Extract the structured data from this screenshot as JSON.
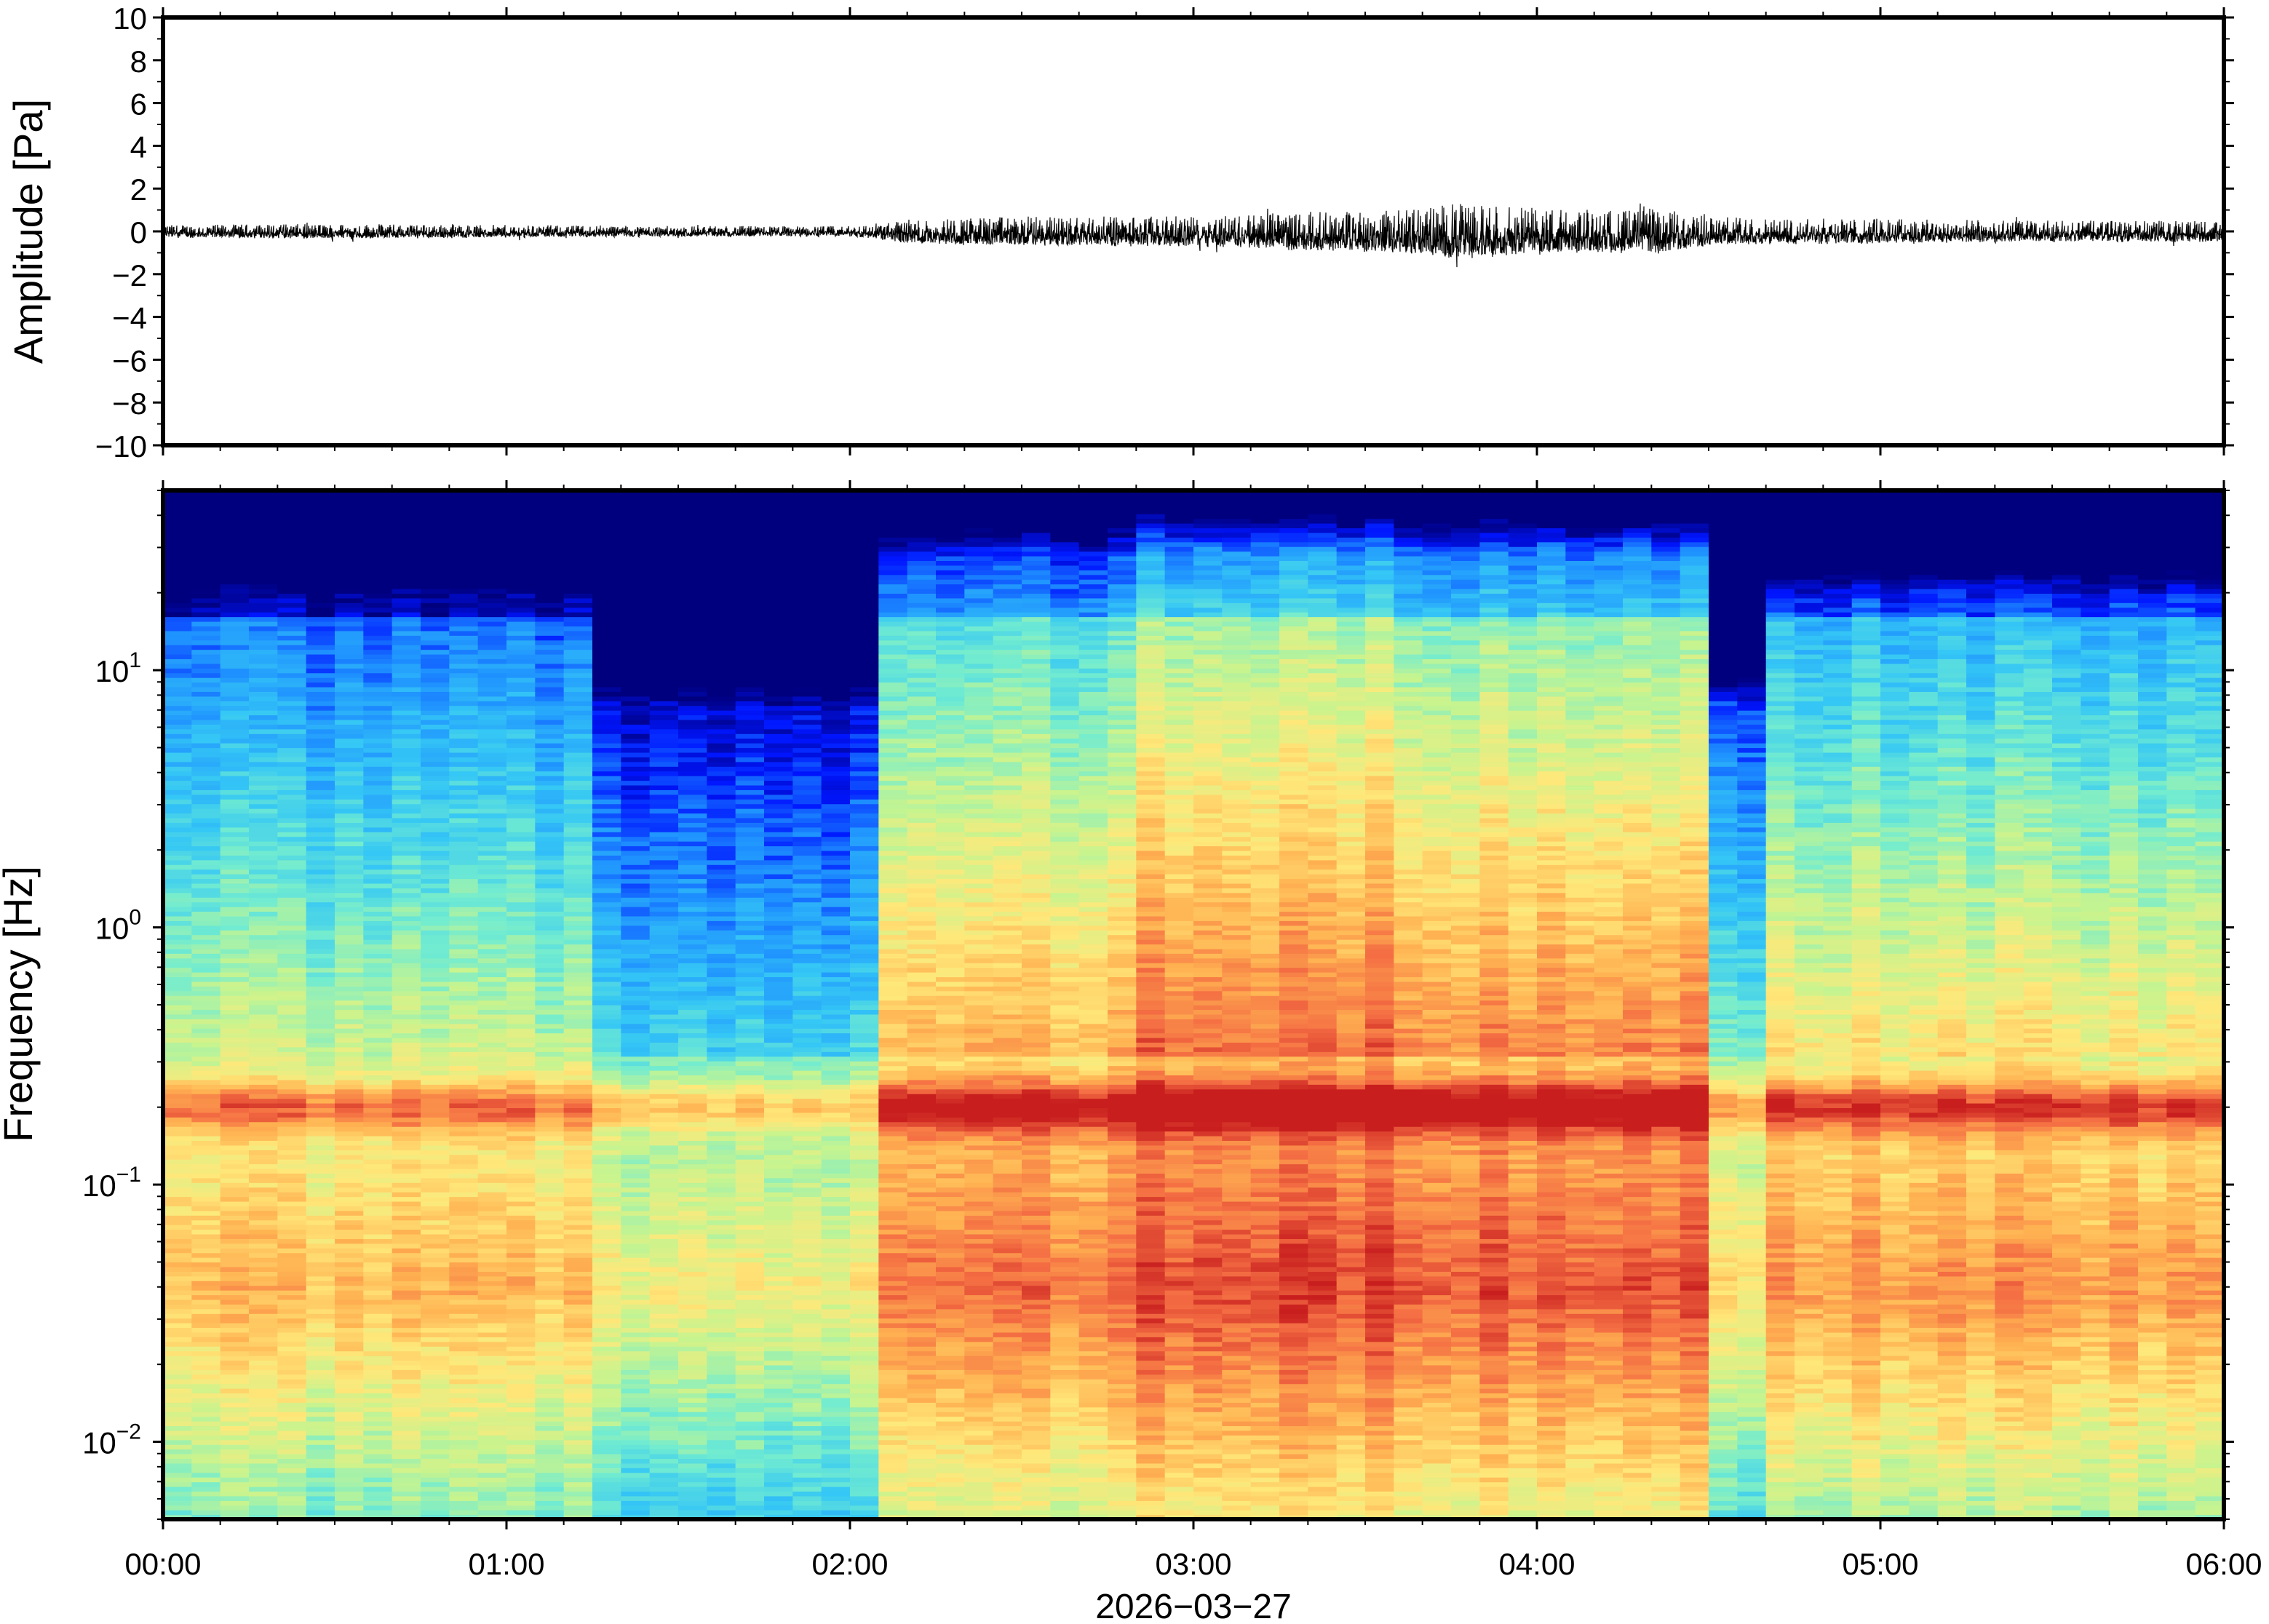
{
  "chart_data": [
    {
      "type": "line",
      "panel": "waveform",
      "ylabel": "Amplitude [Pa]",
      "ylim": [
        -10,
        10
      ],
      "y_ticks": [
        "10",
        "8",
        "6",
        "4",
        "2",
        "0",
        "−2",
        "−4",
        "−6",
        "−8",
        "−10"
      ],
      "y_tick_values": [
        10,
        8,
        6,
        4,
        2,
        0,
        -2,
        -4,
        -6,
        -8,
        -10
      ],
      "xlim_hours": [
        0,
        6
      ],
      "series": [
        {
          "values_description": "noise trace",
          "x_hours": [
            0,
            0.5,
            1.0,
            1.5,
            2.0,
            2.2,
            2.5,
            3.0,
            3.3,
            3.6,
            3.75,
            4.0,
            4.2,
            4.35,
            4.5,
            4.7,
            5.0,
            5.5,
            6.0
          ],
          "envelope_pa": [
            0.3,
            0.35,
            0.3,
            0.25,
            0.25,
            0.6,
            0.7,
            0.7,
            0.9,
            1.0,
            1.3,
            1.1,
            1.0,
            1.1,
            0.7,
            0.6,
            0.6,
            0.5,
            0.5
          ]
        }
      ],
      "color": "#000000"
    },
    {
      "type": "heatmap",
      "panel": "spectrogram",
      "ylabel": "Frequency [Hz]",
      "y_scale": "log",
      "ylim_hz": [
        0.005,
        50
      ],
      "y_ticks": [
        {
          "base": "10",
          "exp": "1",
          "value": 10
        },
        {
          "base": "10",
          "exp": "0",
          "value": 1
        },
        {
          "base": "10",
          "exp": "−1",
          "value": 0.1
        },
        {
          "base": "10",
          "exp": "−2",
          "value": 0.01
        }
      ],
      "x_ticks": [
        "00:00",
        "01:00",
        "02:00",
        "03:00",
        "04:00",
        "05:00",
        "06:00"
      ],
      "x_tick_hours": [
        0,
        1,
        2,
        3,
        4,
        5,
        6
      ],
      "xlabel": "2026−03−27",
      "colormap": [
        "#00007f",
        "#0015ff",
        "#1e90ff",
        "#35c7f5",
        "#72ecd0",
        "#c7f48f",
        "#ffe87a",
        "#ffb352",
        "#f46d43",
        "#c81e1e"
      ],
      "time_blocks": 72,
      "regimes": [
        {
          "hours": [
            0,
            1.25
          ],
          "level": "quiet"
        },
        {
          "hours": [
            1.25,
            2.05
          ],
          "level": "very quiet"
        },
        {
          "hours": [
            2.05,
            4.5
          ],
          "level": "active"
        },
        {
          "hours": [
            4.5,
            4.65
          ],
          "level": "quiet gap"
        },
        {
          "hours": [
            4.65,
            6.0
          ],
          "level": "moderate"
        }
      ],
      "microbarom_band_hz": 0.2
    }
  ]
}
